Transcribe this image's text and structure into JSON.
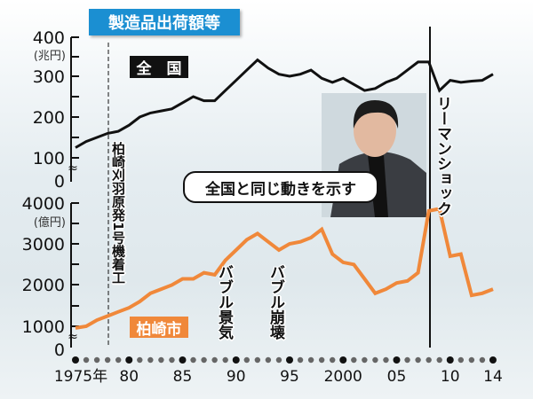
{
  "title": "製造品出荷額等",
  "top_legend": "全　国",
  "bottom_legend": "柏崎市",
  "quote": "全国と同じ動きを示す",
  "annotations": {
    "plant": "柏崎刈羽原発1号機着工",
    "bubble_boom": "バブル景気",
    "bubble_burst": "バブル崩壊",
    "lehman": "リーマンショック"
  },
  "colors": {
    "national": "#111111",
    "kashiwazaki": "#f0883a",
    "title_bg": "#1b8fd2"
  },
  "chart_data": [
    {
      "type": "line",
      "title": "全国",
      "ylabel": "(兆円)",
      "ylim": [
        0,
        400
      ],
      "yticks": [
        "400",
        "300",
        "200",
        "100",
        "0"
      ],
      "axis_break": true,
      "x": [
        1975,
        1976,
        1977,
        1978,
        1979,
        1980,
        1981,
        1982,
        1983,
        1984,
        1985,
        1986,
        1987,
        1988,
        1989,
        1990,
        1991,
        1992,
        1993,
        1994,
        1995,
        1996,
        1997,
        1998,
        1999,
        2000,
        2001,
        2002,
        2003,
        2004,
        2005,
        2006,
        2007,
        2008,
        2009,
        2010,
        2011,
        2012,
        2013,
        2014
      ],
      "series": [
        {
          "name": "全国",
          "values": [
            125,
            140,
            150,
            160,
            165,
            180,
            200,
            210,
            215,
            220,
            235,
            250,
            240,
            240,
            265,
            290,
            315,
            340,
            320,
            305,
            300,
            305,
            315,
            295,
            285,
            295,
            280,
            265,
            270,
            285,
            295,
            315,
            335,
            335,
            265,
            290,
            285,
            288,
            290,
            305
          ]
        }
      ]
    },
    {
      "type": "line",
      "title": "柏崎市",
      "ylabel": "(億円)",
      "ylim": [
        0,
        4000
      ],
      "yticks": [
        "4000",
        "3000",
        "2000",
        "1000",
        "0"
      ],
      "axis_break": true,
      "x": [
        1975,
        1976,
        1977,
        1978,
        1979,
        1980,
        1981,
        1982,
        1983,
        1984,
        1985,
        1986,
        1987,
        1988,
        1989,
        1990,
        1991,
        1992,
        1993,
        1994,
        1995,
        1996,
        1997,
        1998,
        1999,
        2000,
        2001,
        2002,
        2003,
        2004,
        2005,
        2006,
        2007,
        2008,
        2009,
        2010,
        2011,
        2012,
        2013,
        2014
      ],
      "series": [
        {
          "name": "柏崎市",
          "values": [
            960,
            1000,
            1150,
            1250,
            1350,
            1450,
            1600,
            1800,
            1900,
            2000,
            2150,
            2150,
            2300,
            2250,
            2600,
            2850,
            3100,
            3250,
            3050,
            2850,
            3000,
            3050,
            3150,
            3350,
            2750,
            2550,
            2500,
            2150,
            1800,
            1900,
            2050,
            2100,
            2300,
            3800,
            3850,
            2700,
            2750,
            1750,
            1800,
            1900
          ]
        }
      ]
    }
  ],
  "x_tick_labels": [
    {
      "year": 1975,
      "label": "1975年"
    },
    {
      "year": 1980,
      "label": "80"
    },
    {
      "year": 1985,
      "label": "85"
    },
    {
      "year": 1990,
      "label": "90"
    },
    {
      "year": 1995,
      "label": "95"
    },
    {
      "year": 2000,
      "label": "2000"
    },
    {
      "year": 2005,
      "label": "05"
    },
    {
      "year": 2010,
      "label": "10"
    },
    {
      "year": 2014,
      "label": "14"
    }
  ]
}
